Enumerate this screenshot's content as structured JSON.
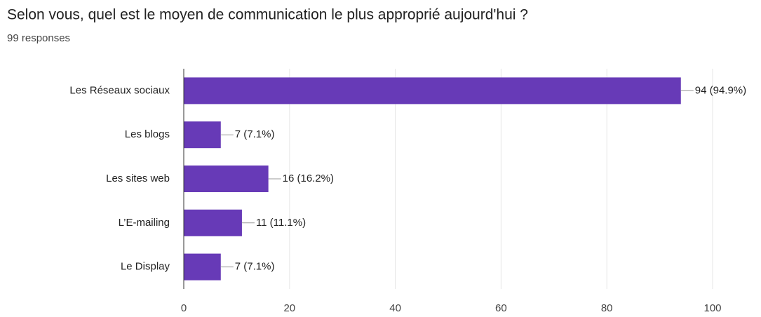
{
  "chart_data": {
    "type": "bar",
    "orientation": "horizontal",
    "title": "Selon vous, quel est le moyen de communication  le plus approprié aujourd'hui ?",
    "subtitle": "99 responses",
    "categories": [
      "Les Réseaux sociaux",
      "Les blogs",
      "Les sites web",
      "L’E-mailing",
      "Le Display"
    ],
    "values": [
      94,
      7,
      16,
      11,
      7
    ],
    "value_labels": [
      "94 (94.9%)",
      "7 (7.1%)",
      "16 (16.2%)",
      "11 (11.1%)",
      "7 (7.1%)"
    ],
    "color": "#673ab7",
    "xlim": [
      0,
      100
    ],
    "xticks": [
      0,
      20,
      40,
      60,
      80,
      100
    ],
    "grid": true
  }
}
